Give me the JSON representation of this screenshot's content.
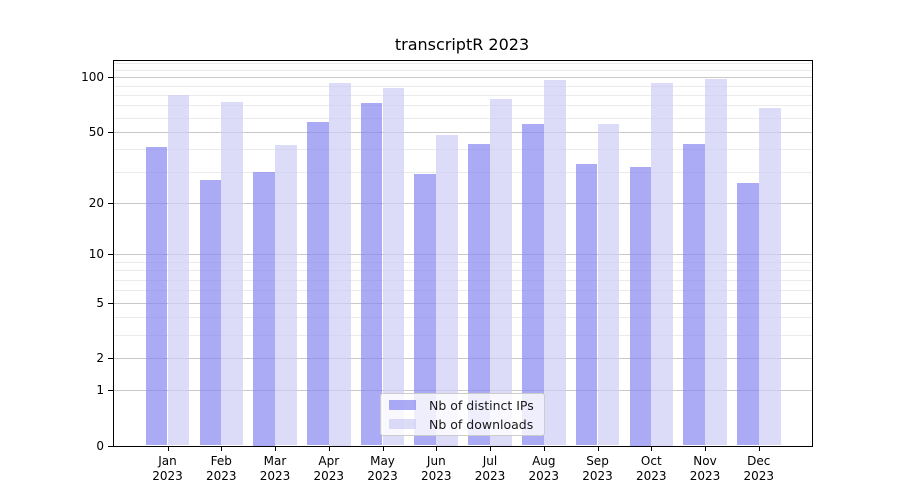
{
  "title": "transcriptR 2023",
  "legend": {
    "items": [
      {
        "label": "Nb of distinct IPs",
        "color": "rgba(134,134,241,0.7)"
      },
      {
        "label": "Nb of downloads",
        "color": "rgba(205,205,245,0.7)"
      }
    ]
  },
  "chart_data": {
    "type": "bar",
    "title": "transcriptR 2023",
    "categories": [
      "Jan 2023",
      "Feb 2023",
      "Mar 2023",
      "Apr 2023",
      "May 2023",
      "Jun 2023",
      "Jul 2023",
      "Aug 2023",
      "Sep 2023",
      "Oct 2023",
      "Nov 2023",
      "Dec 2023"
    ],
    "months": [
      "Jan",
      "Feb",
      "Mar",
      "Apr",
      "May",
      "Jun",
      "Jul",
      "Aug",
      "Sep",
      "Oct",
      "Nov",
      "Dec"
    ],
    "year_label": "2023",
    "series": [
      {
        "name": "Nb of distinct IPs",
        "color": "rgba(134,134,241,0.7)",
        "values": [
          41,
          27,
          30,
          57,
          72,
          29,
          43,
          55,
          33,
          32,
          43,
          26
        ]
      },
      {
        "name": "Nb of downloads",
        "color": "rgba(205,205,245,0.7)",
        "values": [
          80,
          73,
          42,
          93,
          87,
          48,
          76,
          97,
          55,
          93,
          98,
          68
        ]
      }
    ],
    "xlabel": "",
    "ylabel": "",
    "yscale": "log1p",
    "ylim": [
      0,
      123
    ],
    "yticks": [
      0,
      1,
      2,
      5,
      10,
      20,
      50,
      100
    ],
    "ytick_labels": [
      "0",
      "1",
      "2",
      "5",
      "10",
      "20",
      "50",
      "100"
    ],
    "yminor_ticks": [
      3,
      4,
      6,
      7,
      8,
      9,
      30,
      40,
      60,
      70,
      80,
      90,
      110,
      120
    ],
    "grid": "on",
    "legend_position": "lower center",
    "colors": {
      "major_grid": "#c9c9c9",
      "minor_grid": "#ebebeb",
      "spine": "#000000",
      "text": "#000000"
    }
  }
}
